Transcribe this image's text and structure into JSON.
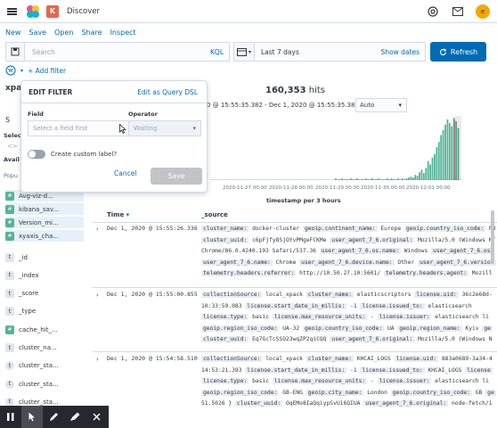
{
  "topbar": {
    "breadcrumb": "Discover",
    "space_letter": "K",
    "avatar_letter": "e",
    "icons": [
      "help-icon",
      "newsfeed-icon",
      "avatar"
    ]
  },
  "menu": [
    "New",
    "Save",
    "Open",
    "Share",
    "Inspect"
  ],
  "query": {
    "placeholder": "Search",
    "language": "KQL",
    "date_label": "Last 7 days",
    "show_dates": "Show dates",
    "refresh": "Refresh"
  },
  "filters": {
    "add_label": "+ Add filter"
  },
  "sidebar": {
    "index_prefix": "xpack",
    "selected_label": "Select",
    "available_label": "Avail",
    "popular_label": "Popu",
    "selected_fields": [
      "Avg-viz-d...",
      "kibana_sav...",
      "Version_mi...",
      "xyaxis_cha..."
    ],
    "fields": [
      "_id",
      "_index",
      "_score",
      "_type",
      "cache_hit_...",
      "cluster_na...",
      "cluster_sta...",
      "cluster_sta...",
      "cluster_sta...",
      "cluster_sta...",
      "cluster_sta..."
    ]
  },
  "edit_filter": {
    "title": "EDIT FILTER",
    "dsl_link": "Edit as Query DSL",
    "field_label": "Field",
    "field_placeholder": "Select a field first",
    "operator_label": "Operator",
    "operator_placeholder": "Waiting",
    "custom_label": "Create custom label?",
    "cancel": "Cancel",
    "save": "Save"
  },
  "main": {
    "hits_count": "160,353",
    "hits_suffix": "hits",
    "range_text": "0 @ 15:55:35.382 - Dec 1, 2020 @ 15:55:35.382 -",
    "interval": "Auto",
    "timestamp_label": "timestamp per 3 hours",
    "col_time": "Time",
    "col_source": "_source"
  },
  "chart_data": {
    "type": "bar",
    "xlabel": "timestamp per 3 hours",
    "x_ticks": [
      "2020-11-27 00:00",
      "2020-11-28 00:00",
      "2020-11-29 00:00",
      "2020-11-30 00:00",
      "2020-12-01 00:00"
    ],
    "values": [
      2,
      1,
      1,
      2,
      1,
      1,
      1,
      2,
      1,
      1,
      2,
      1,
      1,
      1,
      2,
      1,
      1,
      2,
      1,
      1,
      2,
      1,
      1,
      1,
      2,
      1,
      2,
      1,
      1,
      2,
      1,
      2,
      1,
      2,
      3,
      4,
      3,
      6,
      5,
      9,
      12,
      8,
      14,
      22,
      18,
      26,
      30,
      38,
      44,
      52,
      58,
      64,
      70,
      66,
      62,
      72,
      68,
      60
    ],
    "ylim": [
      0,
      72
    ],
    "color": "#54b399"
  },
  "rows": [
    {
      "time": "Dec 1, 2020 @ 15:55:26.336",
      "lines": [
        [
          [
            "cluster_name:",
            "docker-cluster"
          ],
          [
            "geoip.continent_name:",
            "Europe"
          ],
          [
            "geoip.country_iso_code:",
            "RU"
          ]
        ],
        [
          [
            "cluster_uuid:",
            "c6pFjfy8SjOYvPMgeFCKMe"
          ],
          [
            "user_agent_7_6.original:",
            "Mozilla/5.0 (Windows NT"
          ]
        ],
        [
          [
            "",
            "Chrome/86.0.4240.193 Safari/537.36"
          ],
          [
            "user_agent_7_6.os.name:",
            "Windows"
          ],
          [
            "user_agent_7_6.os",
            ""
          ]
        ],
        [
          [
            "user_agent_7_6.name:",
            "Chrome"
          ],
          [
            "user_agent_7_6.device.name:",
            "Other"
          ],
          [
            "user_agent_7_6.version",
            ""
          ]
        ],
        [
          [
            "telemetry.headers.referrer:",
            "http://10.50.27.10:5601/"
          ],
          [
            "telemetry.headers.agent:",
            "Mozill"
          ]
        ]
      ]
    },
    {
      "time": "Dec 1, 2020 @ 15:55:00.855",
      "lines": [
        [
          [
            "collectionSource:",
            "local_xpack"
          ],
          [
            "cluster_name:",
            "elasticscriptors"
          ],
          [
            "license.uid:",
            "36c2e68d-"
          ]
        ],
        [
          [
            "",
            "10:33:59.083"
          ],
          [
            "license.start_date_in_millis:",
            "-1"
          ],
          [
            "license.issued_to:",
            "elasticsearch"
          ]
        ],
        [
          [
            "license.type:",
            "basic"
          ],
          [
            "license.max_resource_units:",
            "-"
          ],
          [
            "license.issuer:",
            "elasticsearch li"
          ]
        ],
        [
          [
            "geoip.region_iso_code:",
            "UA-32"
          ],
          [
            "geoip.country_iso_code:",
            "UA"
          ],
          [
            "geoip.region_name:",
            "Kyiv"
          ],
          [
            "ge",
            ""
          ]
        ],
        [
          [
            "cluster_uuid:",
            "Eq7GcTcSSO23wqZP2qiCQQ"
          ],
          [
            "user_agent_7_6.original:",
            "Mozilla/5.0 (Windows N"
          ]
        ]
      ]
    },
    {
      "time": "Dec 1, 2020 @ 15:54:58.510",
      "lines": [
        [
          [
            "collectionSource:",
            "local_xpack"
          ],
          [
            "cluster_name:",
            "KHCAI_LOGS"
          ],
          [
            "license.uid:",
            "883a0689-3a34-4"
          ]
        ],
        [
          [
            "",
            "14:53:21.393"
          ],
          [
            "license.start_date_in_millis:",
            "-1"
          ],
          [
            "license.issued_to:",
            "KHCAI_LOGS"
          ],
          [
            "license",
            ""
          ]
        ],
        [
          [
            "license.type:",
            "basic"
          ],
          [
            "license.max_resource_units:",
            "-"
          ],
          [
            "license.issuer:",
            "elasticsearch li"
          ]
        ],
        [
          [
            "geoip.region_iso_code:",
            "GB-ENG"
          ],
          [
            "geoip.city_name:",
            "London"
          ],
          [
            "geoip.country_iso_code:",
            "GB"
          ],
          [
            "ge",
            ""
          ]
        ],
        [
          [
            "",
            "51.5026 }"
          ],
          [
            "cluster_uuid:",
            "OqEMo8IaQqiypSvU16QIUA"
          ],
          [
            "user_agent_7_6.original:",
            "node-fetch/1"
          ]
        ]
      ]
    }
  ]
}
